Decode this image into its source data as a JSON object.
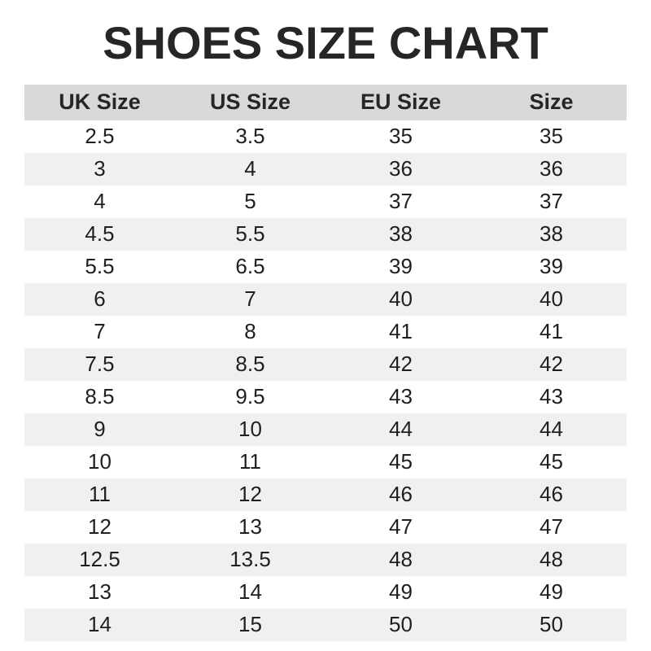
{
  "page": {
    "title": "SHOES SIZE CHART"
  },
  "colors": {
    "title_text": "#262626",
    "header_bg": "#d9d9d9",
    "stripe_bg": "#f0f0f0",
    "row_bg": "#ffffff",
    "cell_text": "#1f1f1f"
  },
  "table": {
    "columns": [
      "UK Size",
      "US Size",
      "EU Size",
      "Size"
    ],
    "rows": [
      [
        "2.5",
        "3.5",
        "35",
        "35"
      ],
      [
        "3",
        "4",
        "36",
        "36"
      ],
      [
        "4",
        "5",
        "37",
        "37"
      ],
      [
        "4.5",
        "5.5",
        "38",
        "38"
      ],
      [
        "5.5",
        "6.5",
        "39",
        "39"
      ],
      [
        "6",
        "7",
        "40",
        "40"
      ],
      [
        "7",
        "8",
        "41",
        "41"
      ],
      [
        "7.5",
        "8.5",
        "42",
        "42"
      ],
      [
        "8.5",
        "9.5",
        "43",
        "43"
      ],
      [
        "9",
        "10",
        "44",
        "44"
      ],
      [
        "10",
        "11",
        "45",
        "45"
      ],
      [
        "11",
        "12",
        "46",
        "46"
      ],
      [
        "12",
        "13",
        "47",
        "47"
      ],
      [
        "12.5",
        "13.5",
        "48",
        "48"
      ],
      [
        "13",
        "14",
        "49",
        "49"
      ],
      [
        "14",
        "15",
        "50",
        "50"
      ]
    ]
  },
  "chart_data": {
    "type": "table",
    "title": "SHOES SIZE CHART",
    "columns": [
      "UK Size",
      "US Size",
      "EU Size",
      "Size"
    ],
    "rows": [
      [
        "2.5",
        "3.5",
        "35",
        "35"
      ],
      [
        "3",
        "4",
        "36",
        "36"
      ],
      [
        "4",
        "5",
        "37",
        "37"
      ],
      [
        "4.5",
        "5.5",
        "38",
        "38"
      ],
      [
        "5.5",
        "6.5",
        "39",
        "39"
      ],
      [
        "6",
        "7",
        "40",
        "40"
      ],
      [
        "7",
        "8",
        "41",
        "41"
      ],
      [
        "7.5",
        "8.5",
        "42",
        "42"
      ],
      [
        "8.5",
        "9.5",
        "43",
        "43"
      ],
      [
        "9",
        "10",
        "44",
        "44"
      ],
      [
        "10",
        "11",
        "45",
        "45"
      ],
      [
        "11",
        "12",
        "46",
        "46"
      ],
      [
        "12",
        "13",
        "47",
        "47"
      ],
      [
        "12.5",
        "13.5",
        "48",
        "48"
      ],
      [
        "13",
        "14",
        "49",
        "49"
      ],
      [
        "14",
        "15",
        "50",
        "50"
      ]
    ],
    "layout": {
      "header_row_shaded": true,
      "zebra_striping": true,
      "legend_position": "none",
      "grid": false
    }
  }
}
